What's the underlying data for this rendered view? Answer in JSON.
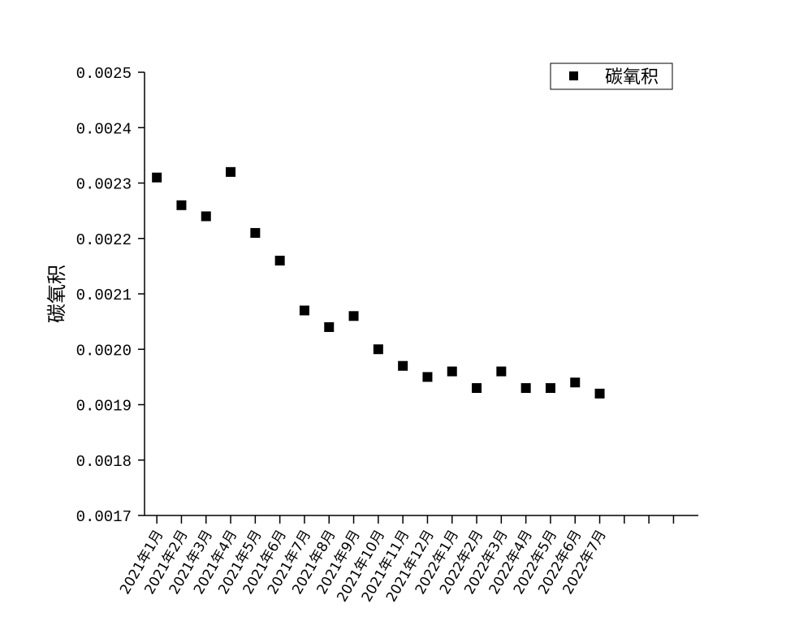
{
  "chart_data": {
    "type": "scatter",
    "title": "",
    "xlabel": "",
    "ylabel": "碳氧积",
    "categories": [
      "2021年1月",
      "2021年2月",
      "2021年3月",
      "2021年4月",
      "2021年5月",
      "2021年6月",
      "2021年7月",
      "2021年8月",
      "2021年9月",
      "2021年10月",
      "2021年11月",
      "2021年12月",
      "2022年1月",
      "2022年2月",
      "2022年3月",
      "2022年4月",
      "2022年5月",
      "2022年6月",
      "2022年7月"
    ],
    "series": [
      {
        "name": "碳氧积",
        "values": [
          0.00231,
          0.00226,
          0.00224,
          0.00232,
          0.00221,
          0.00216,
          0.00207,
          0.00204,
          0.00206,
          0.002,
          0.00197,
          0.00195,
          0.00196,
          0.00193,
          0.00196,
          0.00193,
          0.00193,
          0.00194,
          0.00192
        ],
        "color": "#000000",
        "marker": "square"
      }
    ],
    "ylim": [
      0.0017,
      0.0025
    ],
    "yticks": [
      "0.0017",
      "0.0018",
      "0.0019",
      "0.0020",
      "0.0021",
      "0.0022",
      "0.0023",
      "0.0024",
      "0.0025"
    ],
    "x_slots": 22,
    "grid": false,
    "legend_position": "top-right"
  }
}
